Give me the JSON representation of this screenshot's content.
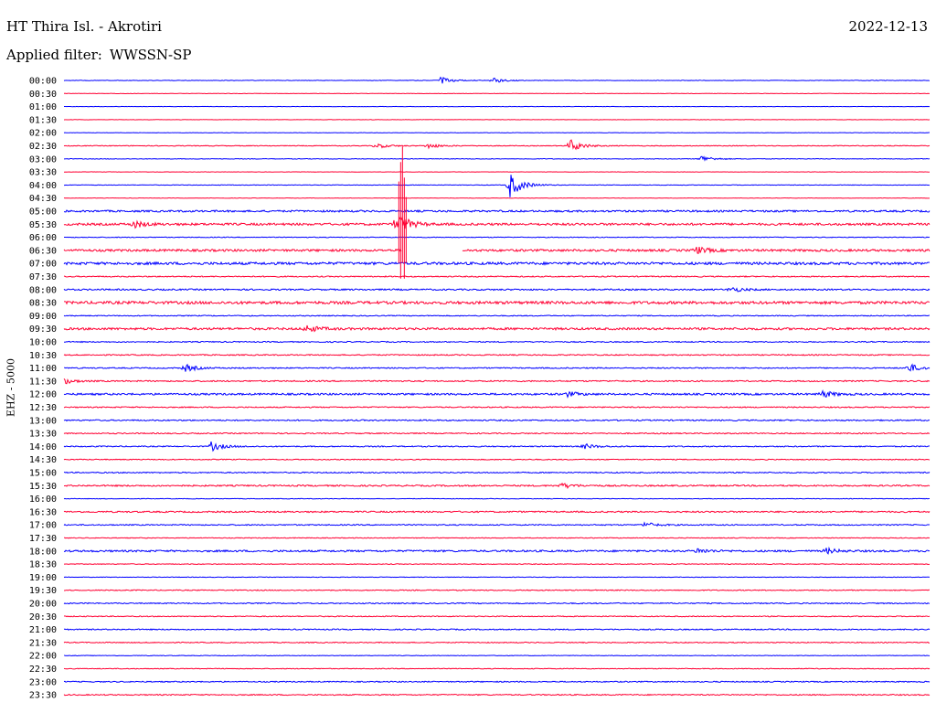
{
  "header": {
    "station": "HT Thira Isl. - Akrotiri",
    "date": "2022-12-13",
    "filter_prefix": "Applied filter:",
    "filter": "WWSSN-SP",
    "channel": "EHZ - 5000"
  },
  "chart_data": {
    "type": "line",
    "title": "HT Thira Isl. - Akrotiri",
    "ylabel": "EHZ - 5000",
    "colors": {
      "even_hour": "#0000ff",
      "half_hour": "#ff0033"
    },
    "rows": [
      "00:00",
      "00:30",
      "01:00",
      "01:30",
      "02:00",
      "02:30",
      "03:00",
      "03:30",
      "04:00",
      "04:30",
      "05:00",
      "05:30",
      "06:00",
      "06:30",
      "07:00",
      "07:30",
      "08:00",
      "08:30",
      "09:00",
      "09:30",
      "10:00",
      "10:30",
      "11:00",
      "11:30",
      "12:00",
      "12:30",
      "13:00",
      "13:30",
      "14:00",
      "14:30",
      "15:00",
      "15:30",
      "16:00",
      "16:30",
      "17:00",
      "17:30",
      "18:00",
      "18:30",
      "19:00",
      "19:30",
      "20:00",
      "20:30",
      "21:00",
      "21:30",
      "22:00",
      "22:30",
      "23:00",
      "23:30"
    ],
    "noise_level": [
      0.3,
      0.2,
      0.2,
      0.2,
      0.2,
      0.4,
      0.3,
      0.2,
      0.3,
      0.2,
      1.0,
      1.2,
      0.4,
      1.2,
      1.4,
      0.6,
      0.8,
      1.5,
      0.5,
      1.2,
      0.6,
      0.6,
      0.6,
      0.7,
      1.0,
      0.6,
      0.7,
      0.6,
      0.6,
      0.5,
      0.6,
      0.8,
      0.3,
      0.8,
      0.6,
      0.4,
      1.0,
      0.4,
      0.3,
      0.5,
      0.6,
      0.5,
      0.6,
      0.5,
      0.3,
      0.4,
      0.6,
      0.6
    ],
    "events": [
      {
        "row": 0,
        "x": 0.435,
        "amp": 4
      },
      {
        "row": 0,
        "x": 0.495,
        "amp": 3
      },
      {
        "row": 5,
        "x": 0.36,
        "amp": 3
      },
      {
        "row": 5,
        "x": 0.42,
        "amp": 3
      },
      {
        "row": 5,
        "x": 0.585,
        "amp": 7
      },
      {
        "row": 6,
        "x": 0.735,
        "amp": 4
      },
      {
        "row": 8,
        "x": 0.515,
        "amp": 14
      },
      {
        "row": 11,
        "x": 0.08,
        "amp": 4
      },
      {
        "row": 11,
        "x": 0.385,
        "amp": 12
      },
      {
        "row": 13,
        "x": 0.73,
        "amp": 4
      },
      {
        "row": 16,
        "x": 0.77,
        "amp": 3
      },
      {
        "row": 19,
        "x": 0.28,
        "amp": 4
      },
      {
        "row": 22,
        "x": 0.14,
        "amp": 4
      },
      {
        "row": 22,
        "x": 0.975,
        "amp": 5
      },
      {
        "row": 23,
        "x": 0.0,
        "amp": 3
      },
      {
        "row": 24,
        "x": 0.58,
        "amp": 3
      },
      {
        "row": 24,
        "x": 0.875,
        "amp": 4
      },
      {
        "row": 28,
        "x": 0.17,
        "amp": 5
      },
      {
        "row": 28,
        "x": 0.6,
        "amp": 3
      },
      {
        "row": 31,
        "x": 0.575,
        "amp": 3
      },
      {
        "row": 34,
        "x": 0.67,
        "amp": 3
      },
      {
        "row": 36,
        "x": 0.73,
        "amp": 3
      },
      {
        "row": 36,
        "x": 0.88,
        "amp": 3
      }
    ],
    "spike": {
      "row": 11,
      "x": 0.39,
      "up": 85,
      "down": 85
    },
    "gap": {
      "row": 13,
      "x_start": 0.39,
      "x_end": 0.46
    }
  }
}
